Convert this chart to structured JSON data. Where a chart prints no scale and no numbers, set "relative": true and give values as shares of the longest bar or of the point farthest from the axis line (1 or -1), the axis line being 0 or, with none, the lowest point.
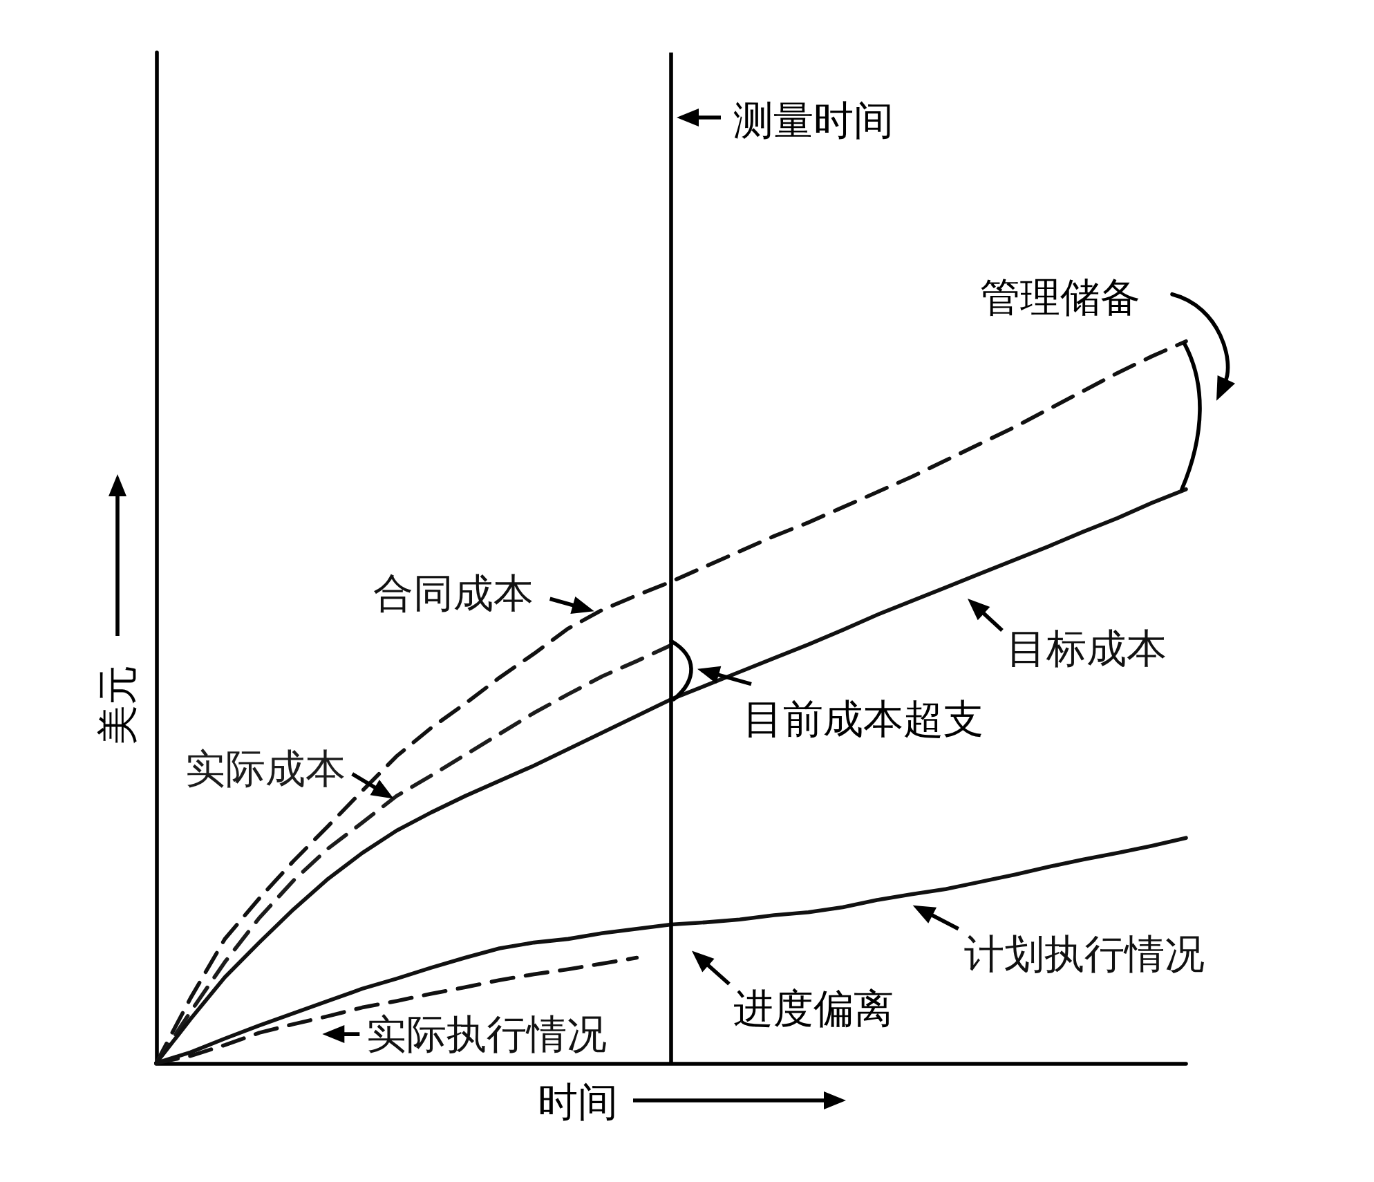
{
  "chart_data": {
    "type": "line",
    "relative": true,
    "xlabel": "时间",
    "ylabel": "美元",
    "categories": [
      null,
      null,
      null,
      null,
      null,
      null,
      null,
      null,
      null,
      null,
      null,
      null,
      null,
      null,
      null,
      null,
      null,
      null,
      null,
      null,
      null,
      null,
      null,
      null,
      null,
      null,
      null,
      null,
      null,
      null,
      null
    ],
    "series": [
      {
        "name": "合同成本",
        "color": "#111111",
        "line_style": "dashed",
        "values": [
          0,
          0.09,
          0.172,
          0.228,
          0.28,
          0.328,
          0.377,
          0.425,
          0.464,
          0.498,
          0.534,
          0.567,
          0.602,
          0.628,
          0.648,
          0.667,
          0.688,
          0.709,
          0.73,
          0.749,
          0.77,
          0.791,
          0.812,
          0.835,
          0.858,
          0.881,
          0.906,
          0.931,
          0.956,
          0.979,
          1
        ]
      },
      {
        "name": "实际成本",
        "color": "#1c1c1c",
        "line_style": "dashed",
        "values": [
          0,
          0.071,
          0.14,
          0.201,
          0.253,
          0.297,
          0.333,
          0.37,
          0.398,
          0.427,
          0.456,
          0.485,
          0.511,
          0.536,
          0.557,
          0.579,
          null,
          null,
          null,
          null,
          null,
          null,
          null,
          null,
          null,
          null,
          null,
          null,
          null,
          null,
          null
        ]
      },
      {
        "name": "目标成本",
        "color": "#111111",
        "line_style": "solid",
        "values": [
          0,
          0.061,
          0.119,
          0.167,
          0.213,
          0.255,
          0.291,
          0.322,
          0.347,
          0.37,
          0.391,
          0.412,
          0.435,
          0.458,
          0.481,
          0.504,
          0.523,
          0.542,
          0.561,
          0.58,
          0.6,
          0.621,
          0.64,
          0.659,
          0.678,
          0.697,
          0.716,
          0.736,
          0.755,
          0.776,
          0.795
        ]
      },
      {
        "name": "计划执行情况",
        "color": "#111111",
        "line_style": "solid",
        "values": [
          0,
          0.015,
          0.034,
          0.052,
          0.069,
          0.086,
          0.103,
          0.117,
          0.132,
          0.146,
          0.159,
          0.167,
          0.172,
          0.18,
          0.186,
          0.192,
          0.195,
          0.199,
          0.205,
          0.209,
          0.216,
          0.226,
          0.234,
          0.241,
          0.251,
          0.261,
          0.272,
          0.282,
          0.291,
          0.301,
          0.312
        ]
      },
      {
        "name": "实际执行情况",
        "color": "#111111",
        "line_style": "dashed",
        "values": [
          0,
          0.01,
          0.025,
          0.042,
          0.054,
          0.065,
          0.077,
          0.086,
          0.096,
          0.105,
          0.115,
          0.123,
          0.13,
          0.138,
          0.146,
          null,
          null,
          null,
          null,
          null,
          null,
          null,
          null,
          null,
          null,
          null,
          null,
          null,
          null,
          null,
          null
        ]
      }
    ],
    "annotations": [
      "测量时间",
      "目前成本超支",
      "进度偏离",
      "管理储备"
    ],
    "marker": "none",
    "legend": false,
    "grid": false
  }
}
